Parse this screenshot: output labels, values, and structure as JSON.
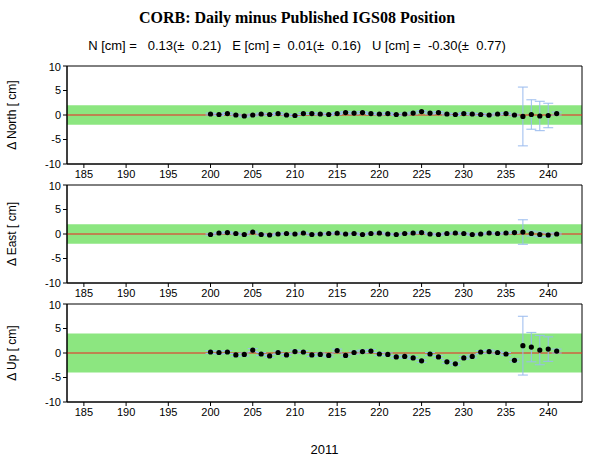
{
  "chart_data": [
    {
      "type": "scatter",
      "title": "CORB: Daily minus Published IGS08 Position",
      "subtitle": "N [cm] =   0.13(±  0.21)   E [cm] =  0.01(±  0.16)   U [cm] =  -0.30(±  0.77)",
      "y_label": "Δ North  [ cm]",
      "x": [
        200,
        201,
        202,
        203,
        204,
        205,
        206,
        207,
        208,
        209,
        210,
        211,
        212,
        213,
        214,
        215,
        216,
        217,
        218,
        219,
        220,
        221,
        222,
        223,
        224,
        225,
        226,
        227,
        228,
        229,
        230,
        231,
        232,
        233,
        234,
        235,
        236,
        237,
        238,
        239,
        240,
        241
      ],
      "values": [
        0.2,
        0.1,
        0.3,
        0,
        -0.2,
        0,
        0.2,
        0.1,
        0.3,
        0,
        -0.1,
        0.3,
        0.3,
        0.2,
        0.1,
        0.3,
        0.5,
        0.4,
        0.5,
        0.3,
        0.2,
        0.3,
        0.1,
        0.2,
        0.4,
        0.7,
        0.4,
        0.5,
        0.2,
        0.1,
        0.3,
        0.2,
        0.1,
        0,
        0.2,
        0.3,
        0,
        -0.3,
        0.1,
        -0.2,
        -0.1,
        0.3
      ],
      "errors": [
        0.2,
        0.2,
        0.2,
        0.2,
        0.2,
        0.2,
        0.2,
        0.2,
        0.2,
        0.2,
        0.2,
        0.2,
        0.2,
        0.2,
        0.2,
        0.2,
        0.2,
        0.2,
        0.2,
        0.2,
        0.2,
        0.2,
        0.2,
        0.2,
        0.2,
        0.2,
        0.2,
        0.2,
        0.2,
        0.2,
        0.2,
        0.2,
        0.2,
        0.2,
        0.2,
        0.2,
        0.2,
        6,
        3,
        3,
        2.5,
        0.3
      ],
      "band": [
        -2,
        2
      ],
      "color": "#000000",
      "marker": "circle",
      "grid": false,
      "xlim": [
        183,
        244
      ],
      "xticks": [
        185,
        190,
        195,
        200,
        205,
        210,
        215,
        220,
        225,
        230,
        235,
        240
      ],
      "ylim": [
        -10,
        10
      ],
      "yticks": [
        -10,
        -5,
        0,
        5,
        10
      ]
    },
    {
      "type": "scatter",
      "y_label": "Δ East  [ cm]",
      "x": [
        200,
        201,
        202,
        203,
        204,
        205,
        206,
        207,
        208,
        209,
        210,
        211,
        212,
        213,
        214,
        215,
        216,
        217,
        218,
        219,
        220,
        221,
        222,
        223,
        224,
        225,
        226,
        227,
        228,
        229,
        230,
        231,
        232,
        233,
        234,
        235,
        236,
        237,
        238,
        239,
        240,
        241
      ],
      "values": [
        -0.1,
        0.2,
        0.3,
        0.1,
        -0.1,
        0.4,
        -0.1,
        -0.2,
        0,
        0.1,
        0,
        0.2,
        -0.1,
        0,
        0.1,
        0.2,
        0,
        0.1,
        -0.1,
        0.1,
        0.2,
        0,
        -0.1,
        0.1,
        0.2,
        0.3,
        0,
        -0.1,
        0.1,
        0.2,
        0.1,
        -0.1,
        0,
        0.2,
        0.1,
        0.2,
        0.3,
        0.4,
        0.1,
        -0.1,
        -0.2,
        0
      ],
      "errors": [
        0.15,
        0.15,
        0.15,
        0.15,
        0.15,
        0.15,
        0.15,
        0.15,
        0.15,
        0.15,
        0.15,
        0.15,
        0.15,
        0.15,
        0.15,
        0.15,
        0.15,
        0.15,
        0.15,
        0.15,
        0.15,
        0.15,
        0.15,
        0.15,
        0.15,
        0.15,
        0.15,
        0.15,
        0.15,
        0.15,
        0.15,
        0.15,
        0.15,
        0.15,
        0.15,
        0.15,
        0.15,
        2.5,
        0.5,
        0.5,
        0.4,
        0.2
      ],
      "band": [
        -2,
        2
      ],
      "color": "#000000",
      "marker": "circle",
      "grid": false,
      "xlim": [
        183,
        244
      ],
      "xticks": [
        185,
        190,
        195,
        200,
        205,
        210,
        215,
        220,
        225,
        230,
        235,
        240
      ],
      "ylim": [
        -10,
        10
      ],
      "yticks": [
        -10,
        -5,
        0,
        5,
        10
      ]
    },
    {
      "type": "scatter",
      "y_label": "Δ Up  [ cm]",
      "x_label": "2011",
      "x": [
        200,
        201,
        202,
        203,
        204,
        205,
        206,
        207,
        208,
        209,
        210,
        211,
        212,
        213,
        214,
        215,
        216,
        217,
        218,
        219,
        220,
        221,
        222,
        223,
        224,
        225,
        226,
        227,
        228,
        229,
        230,
        231,
        232,
        233,
        234,
        235,
        236,
        237,
        238,
        239,
        240,
        241
      ],
      "values": [
        0.2,
        0.1,
        0.2,
        -0.4,
        -0.3,
        0.6,
        -0.2,
        -0.6,
        0.1,
        -0.4,
        0.3,
        0.2,
        -0.4,
        -0.3,
        -0.5,
        0.5,
        -0.5,
        0.1,
        0.3,
        0.4,
        -0.2,
        -0.3,
        -0.8,
        -0.7,
        -1,
        -1.6,
        -0.2,
        -0.8,
        -1.8,
        -2.2,
        -1,
        -0.7,
        0.2,
        0.3,
        0.1,
        -0.2,
        -1.5,
        1.5,
        1.2,
        0.6,
        0.8,
        0.4
      ],
      "errors": [
        0.3,
        0.3,
        0.3,
        0.3,
        0.3,
        0.3,
        0.3,
        0.3,
        0.3,
        0.3,
        0.3,
        0.3,
        0.3,
        0.3,
        0.3,
        0.3,
        0.3,
        0.3,
        0.3,
        0.3,
        0.3,
        0.3,
        0.3,
        0.3,
        0.3,
        0.3,
        0.3,
        0.3,
        0.3,
        0.3,
        0.3,
        0.3,
        0.3,
        0.3,
        0.3,
        0.3,
        0.3,
        6,
        3,
        3,
        2.5,
        0.4
      ],
      "band": [
        -4,
        4
      ],
      "color": "#000000",
      "marker": "circle",
      "grid": false,
      "xlim": [
        183,
        244
      ],
      "xticks": [
        185,
        190,
        195,
        200,
        205,
        210,
        215,
        220,
        225,
        230,
        235,
        240
      ],
      "ylim": [
        -10,
        10
      ],
      "yticks": [
        -10,
        -5,
        0,
        5,
        10
      ]
    }
  ]
}
